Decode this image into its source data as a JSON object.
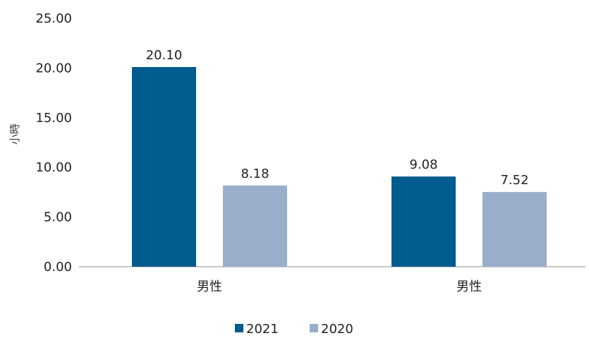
{
  "chart_data": {
    "type": "bar",
    "categories": [
      "男性",
      "男性"
    ],
    "series": [
      {
        "name": "2021",
        "color": "#005b8f",
        "values": [
          20.1,
          9.08
        ],
        "labels": [
          "20.10",
          "9.08"
        ]
      },
      {
        "name": "2020",
        "color": "#98aecb",
        "values": [
          8.18,
          7.52
        ],
        "labels": [
          "8.18",
          "7.52"
        ]
      }
    ],
    "title": "",
    "xlabel": "",
    "ylabel": "小時",
    "ylim": [
      0,
      25
    ],
    "yticks": [
      0,
      5,
      10,
      15,
      20,
      25
    ],
    "ytick_labels": [
      "0.00",
      "5.00",
      "10.00",
      "15.00",
      "20.00",
      "25.00"
    ],
    "grid": false,
    "legend_position": "bottom",
    "axis_color": "#c8c8c8",
    "text_color": "#222222"
  }
}
